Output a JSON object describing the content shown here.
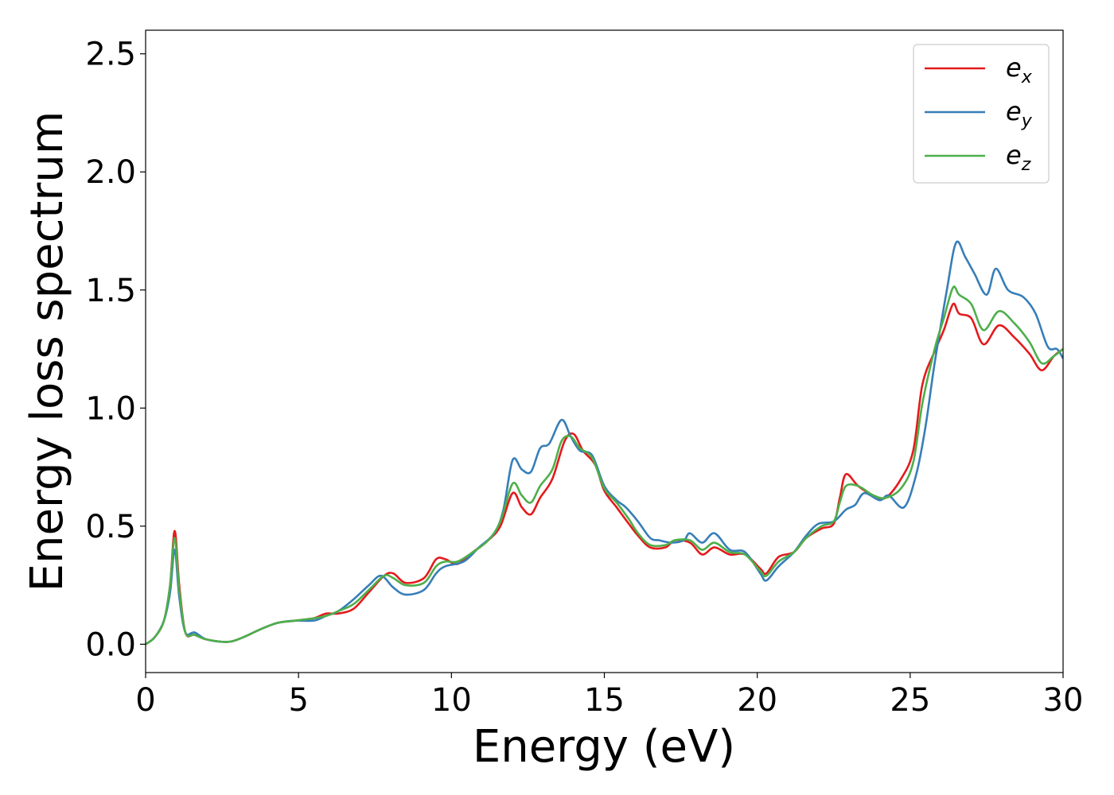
{
  "chart_data": {
    "type": "line",
    "xlabel": "Energy (eV)",
    "ylabel": "Energy loss spectrum",
    "xlim": [
      0,
      30
    ],
    "ylim": [
      -0.12,
      2.6
    ],
    "xticks": [
      0,
      5,
      10,
      15,
      20,
      25,
      30
    ],
    "xtick_labels": [
      "0",
      "5",
      "10",
      "15",
      "20",
      "25",
      "30"
    ],
    "yticks": [
      0.0,
      0.5,
      1.0,
      1.5,
      2.0,
      2.5
    ],
    "ytick_labels": [
      "0.0",
      "0.5",
      "1.0",
      "1.5",
      "2.0",
      "2.5"
    ],
    "grid": false,
    "legend_position": "top-right",
    "series": [
      {
        "name": "e_x",
        "label_main": "e",
        "label_sub": "x",
        "color": "#e41a1c",
        "points": [
          [
            0,
            0.0
          ],
          [
            0.3,
            0.03
          ],
          [
            0.6,
            0.1
          ],
          [
            0.8,
            0.25
          ],
          [
            0.95,
            0.48
          ],
          [
            1.1,
            0.25
          ],
          [
            1.3,
            0.05
          ],
          [
            1.6,
            0.04
          ],
          [
            2,
            0.02
          ],
          [
            2.7,
            0.01
          ],
          [
            3.2,
            0.03
          ],
          [
            3.7,
            0.06
          ],
          [
            4.3,
            0.09
          ],
          [
            4.9,
            0.1
          ],
          [
            5.5,
            0.11
          ],
          [
            5.9,
            0.13
          ],
          [
            6.3,
            0.13
          ],
          [
            6.8,
            0.15
          ],
          [
            7.3,
            0.22
          ],
          [
            7.8,
            0.29
          ],
          [
            8.1,
            0.3
          ],
          [
            8.5,
            0.26
          ],
          [
            9.1,
            0.28
          ],
          [
            9.5,
            0.36
          ],
          [
            9.8,
            0.36
          ],
          [
            10.2,
            0.34
          ],
          [
            10.7,
            0.39
          ],
          [
            11.2,
            0.44
          ],
          [
            11.6,
            0.5
          ],
          [
            12.0,
            0.64
          ],
          [
            12.3,
            0.58
          ],
          [
            12.6,
            0.55
          ],
          [
            12.9,
            0.62
          ],
          [
            13.3,
            0.7
          ],
          [
            13.7,
            0.86
          ],
          [
            14.0,
            0.89
          ],
          [
            14.3,
            0.82
          ],
          [
            14.7,
            0.76
          ],
          [
            15.0,
            0.65
          ],
          [
            15.4,
            0.58
          ],
          [
            15.8,
            0.51
          ],
          [
            16.1,
            0.46
          ],
          [
            16.5,
            0.41
          ],
          [
            17.0,
            0.41
          ],
          [
            17.3,
            0.44
          ],
          [
            17.8,
            0.43
          ],
          [
            18.2,
            0.38
          ],
          [
            18.6,
            0.41
          ],
          [
            19.1,
            0.38
          ],
          [
            19.6,
            0.38
          ],
          [
            20.1,
            0.32
          ],
          [
            20.3,
            0.3
          ],
          [
            20.7,
            0.37
          ],
          [
            21.2,
            0.39
          ],
          [
            21.6,
            0.45
          ],
          [
            22.1,
            0.49
          ],
          [
            22.5,
            0.51
          ],
          [
            22.7,
            0.62
          ],
          [
            22.9,
            0.72
          ],
          [
            23.3,
            0.67
          ],
          [
            23.8,
            0.63
          ],
          [
            24.2,
            0.62
          ],
          [
            24.7,
            0.7
          ],
          [
            25.1,
            0.82
          ],
          [
            25.4,
            1.1
          ],
          [
            25.8,
            1.24
          ],
          [
            26.1,
            1.33
          ],
          [
            26.4,
            1.44
          ],
          [
            26.6,
            1.4
          ],
          [
            27.0,
            1.38
          ],
          [
            27.4,
            1.27
          ],
          [
            27.9,
            1.35
          ],
          [
            28.4,
            1.3
          ],
          [
            28.9,
            1.23
          ],
          [
            29.3,
            1.16
          ],
          [
            29.7,
            1.22
          ],
          [
            30,
            1.25
          ]
        ]
      },
      {
        "name": "e_y",
        "label_main": "e",
        "label_sub": "y",
        "color": "#377eb8",
        "points": [
          [
            0,
            0.0
          ],
          [
            0.3,
            0.03
          ],
          [
            0.6,
            0.1
          ],
          [
            0.8,
            0.22
          ],
          [
            0.95,
            0.4
          ],
          [
            1.1,
            0.2
          ],
          [
            1.3,
            0.05
          ],
          [
            1.6,
            0.05
          ],
          [
            2,
            0.02
          ],
          [
            2.7,
            0.01
          ],
          [
            3.2,
            0.03
          ],
          [
            3.7,
            0.06
          ],
          [
            4.3,
            0.09
          ],
          [
            4.9,
            0.1
          ],
          [
            5.5,
            0.1
          ],
          [
            5.9,
            0.12
          ],
          [
            6.3,
            0.14
          ],
          [
            6.8,
            0.19
          ],
          [
            7.3,
            0.25
          ],
          [
            7.7,
            0.29
          ],
          [
            8.1,
            0.24
          ],
          [
            8.5,
            0.21
          ],
          [
            9.1,
            0.23
          ],
          [
            9.5,
            0.3
          ],
          [
            9.8,
            0.33
          ],
          [
            10.4,
            0.35
          ],
          [
            10.9,
            0.41
          ],
          [
            11.4,
            0.47
          ],
          [
            11.7,
            0.57
          ],
          [
            12.0,
            0.78
          ],
          [
            12.3,
            0.74
          ],
          [
            12.6,
            0.73
          ],
          [
            12.9,
            0.83
          ],
          [
            13.2,
            0.85
          ],
          [
            13.6,
            0.95
          ],
          [
            13.9,
            0.88
          ],
          [
            14.2,
            0.82
          ],
          [
            14.6,
            0.8
          ],
          [
            15.0,
            0.67
          ],
          [
            15.4,
            0.61
          ],
          [
            15.7,
            0.58
          ],
          [
            16.1,
            0.52
          ],
          [
            16.5,
            0.45
          ],
          [
            16.8,
            0.44
          ],
          [
            17.2,
            0.43
          ],
          [
            17.6,
            0.44
          ],
          [
            17.8,
            0.47
          ],
          [
            18.2,
            0.43
          ],
          [
            18.6,
            0.47
          ],
          [
            19.1,
            0.4
          ],
          [
            19.6,
            0.39
          ],
          [
            20.1,
            0.3
          ],
          [
            20.3,
            0.27
          ],
          [
            20.7,
            0.33
          ],
          [
            21.2,
            0.39
          ],
          [
            21.6,
            0.46
          ],
          [
            22.0,
            0.51
          ],
          [
            22.5,
            0.52
          ],
          [
            22.9,
            0.57
          ],
          [
            23.2,
            0.59
          ],
          [
            23.5,
            0.64
          ],
          [
            24.0,
            0.61
          ],
          [
            24.3,
            0.63
          ],
          [
            24.8,
            0.58
          ],
          [
            25.2,
            0.72
          ],
          [
            25.5,
            0.92
          ],
          [
            25.8,
            1.19
          ],
          [
            26.2,
            1.5
          ],
          [
            26.5,
            1.7
          ],
          [
            26.8,
            1.64
          ],
          [
            27.1,
            1.57
          ],
          [
            27.5,
            1.48
          ],
          [
            27.8,
            1.59
          ],
          [
            28.2,
            1.5
          ],
          [
            28.7,
            1.47
          ],
          [
            29.1,
            1.4
          ],
          [
            29.5,
            1.26
          ],
          [
            29.8,
            1.25
          ],
          [
            30,
            1.21
          ]
        ]
      },
      {
        "name": "e_z",
        "label_main": "e",
        "label_sub": "z",
        "color": "#4daf4a",
        "points": [
          [
            0,
            0.0
          ],
          [
            0.3,
            0.03
          ],
          [
            0.6,
            0.1
          ],
          [
            0.8,
            0.25
          ],
          [
            0.95,
            0.45
          ],
          [
            1.1,
            0.23
          ],
          [
            1.3,
            0.05
          ],
          [
            1.6,
            0.04
          ],
          [
            2,
            0.02
          ],
          [
            2.7,
            0.01
          ],
          [
            3.2,
            0.03
          ],
          [
            3.7,
            0.06
          ],
          [
            4.3,
            0.09
          ],
          [
            4.9,
            0.1
          ],
          [
            5.5,
            0.11
          ],
          [
            5.9,
            0.12
          ],
          [
            6.3,
            0.14
          ],
          [
            6.8,
            0.17
          ],
          [
            7.3,
            0.23
          ],
          [
            7.8,
            0.29
          ],
          [
            8.1,
            0.28
          ],
          [
            8.5,
            0.25
          ],
          [
            9.1,
            0.26
          ],
          [
            9.5,
            0.33
          ],
          [
            9.8,
            0.35
          ],
          [
            10.2,
            0.35
          ],
          [
            10.7,
            0.39
          ],
          [
            11.2,
            0.44
          ],
          [
            11.6,
            0.52
          ],
          [
            12.0,
            0.68
          ],
          [
            12.3,
            0.63
          ],
          [
            12.6,
            0.6
          ],
          [
            12.9,
            0.67
          ],
          [
            13.3,
            0.74
          ],
          [
            13.6,
            0.86
          ],
          [
            13.9,
            0.88
          ],
          [
            14.2,
            0.83
          ],
          [
            14.6,
            0.79
          ],
          [
            15.0,
            0.66
          ],
          [
            15.4,
            0.6
          ],
          [
            15.8,
            0.53
          ],
          [
            16.1,
            0.47
          ],
          [
            16.5,
            0.42
          ],
          [
            17.0,
            0.42
          ],
          [
            17.3,
            0.44
          ],
          [
            17.8,
            0.44
          ],
          [
            18.2,
            0.4
          ],
          [
            18.6,
            0.43
          ],
          [
            19.1,
            0.39
          ],
          [
            19.6,
            0.38
          ],
          [
            20.1,
            0.31
          ],
          [
            20.3,
            0.29
          ],
          [
            20.7,
            0.35
          ],
          [
            21.2,
            0.39
          ],
          [
            21.6,
            0.45
          ],
          [
            22.1,
            0.5
          ],
          [
            22.5,
            0.52
          ],
          [
            22.7,
            0.6
          ],
          [
            22.9,
            0.67
          ],
          [
            23.3,
            0.67
          ],
          [
            23.8,
            0.63
          ],
          [
            24.2,
            0.62
          ],
          [
            24.7,
            0.66
          ],
          [
            25.1,
            0.77
          ],
          [
            25.4,
            1.02
          ],
          [
            25.8,
            1.25
          ],
          [
            26.1,
            1.38
          ],
          [
            26.4,
            1.51
          ],
          [
            26.6,
            1.48
          ],
          [
            27.0,
            1.44
          ],
          [
            27.4,
            1.33
          ],
          [
            27.9,
            1.41
          ],
          [
            28.4,
            1.36
          ],
          [
            28.9,
            1.28
          ],
          [
            29.3,
            1.19
          ],
          [
            29.7,
            1.22
          ],
          [
            30,
            1.25
          ]
        ]
      }
    ]
  }
}
